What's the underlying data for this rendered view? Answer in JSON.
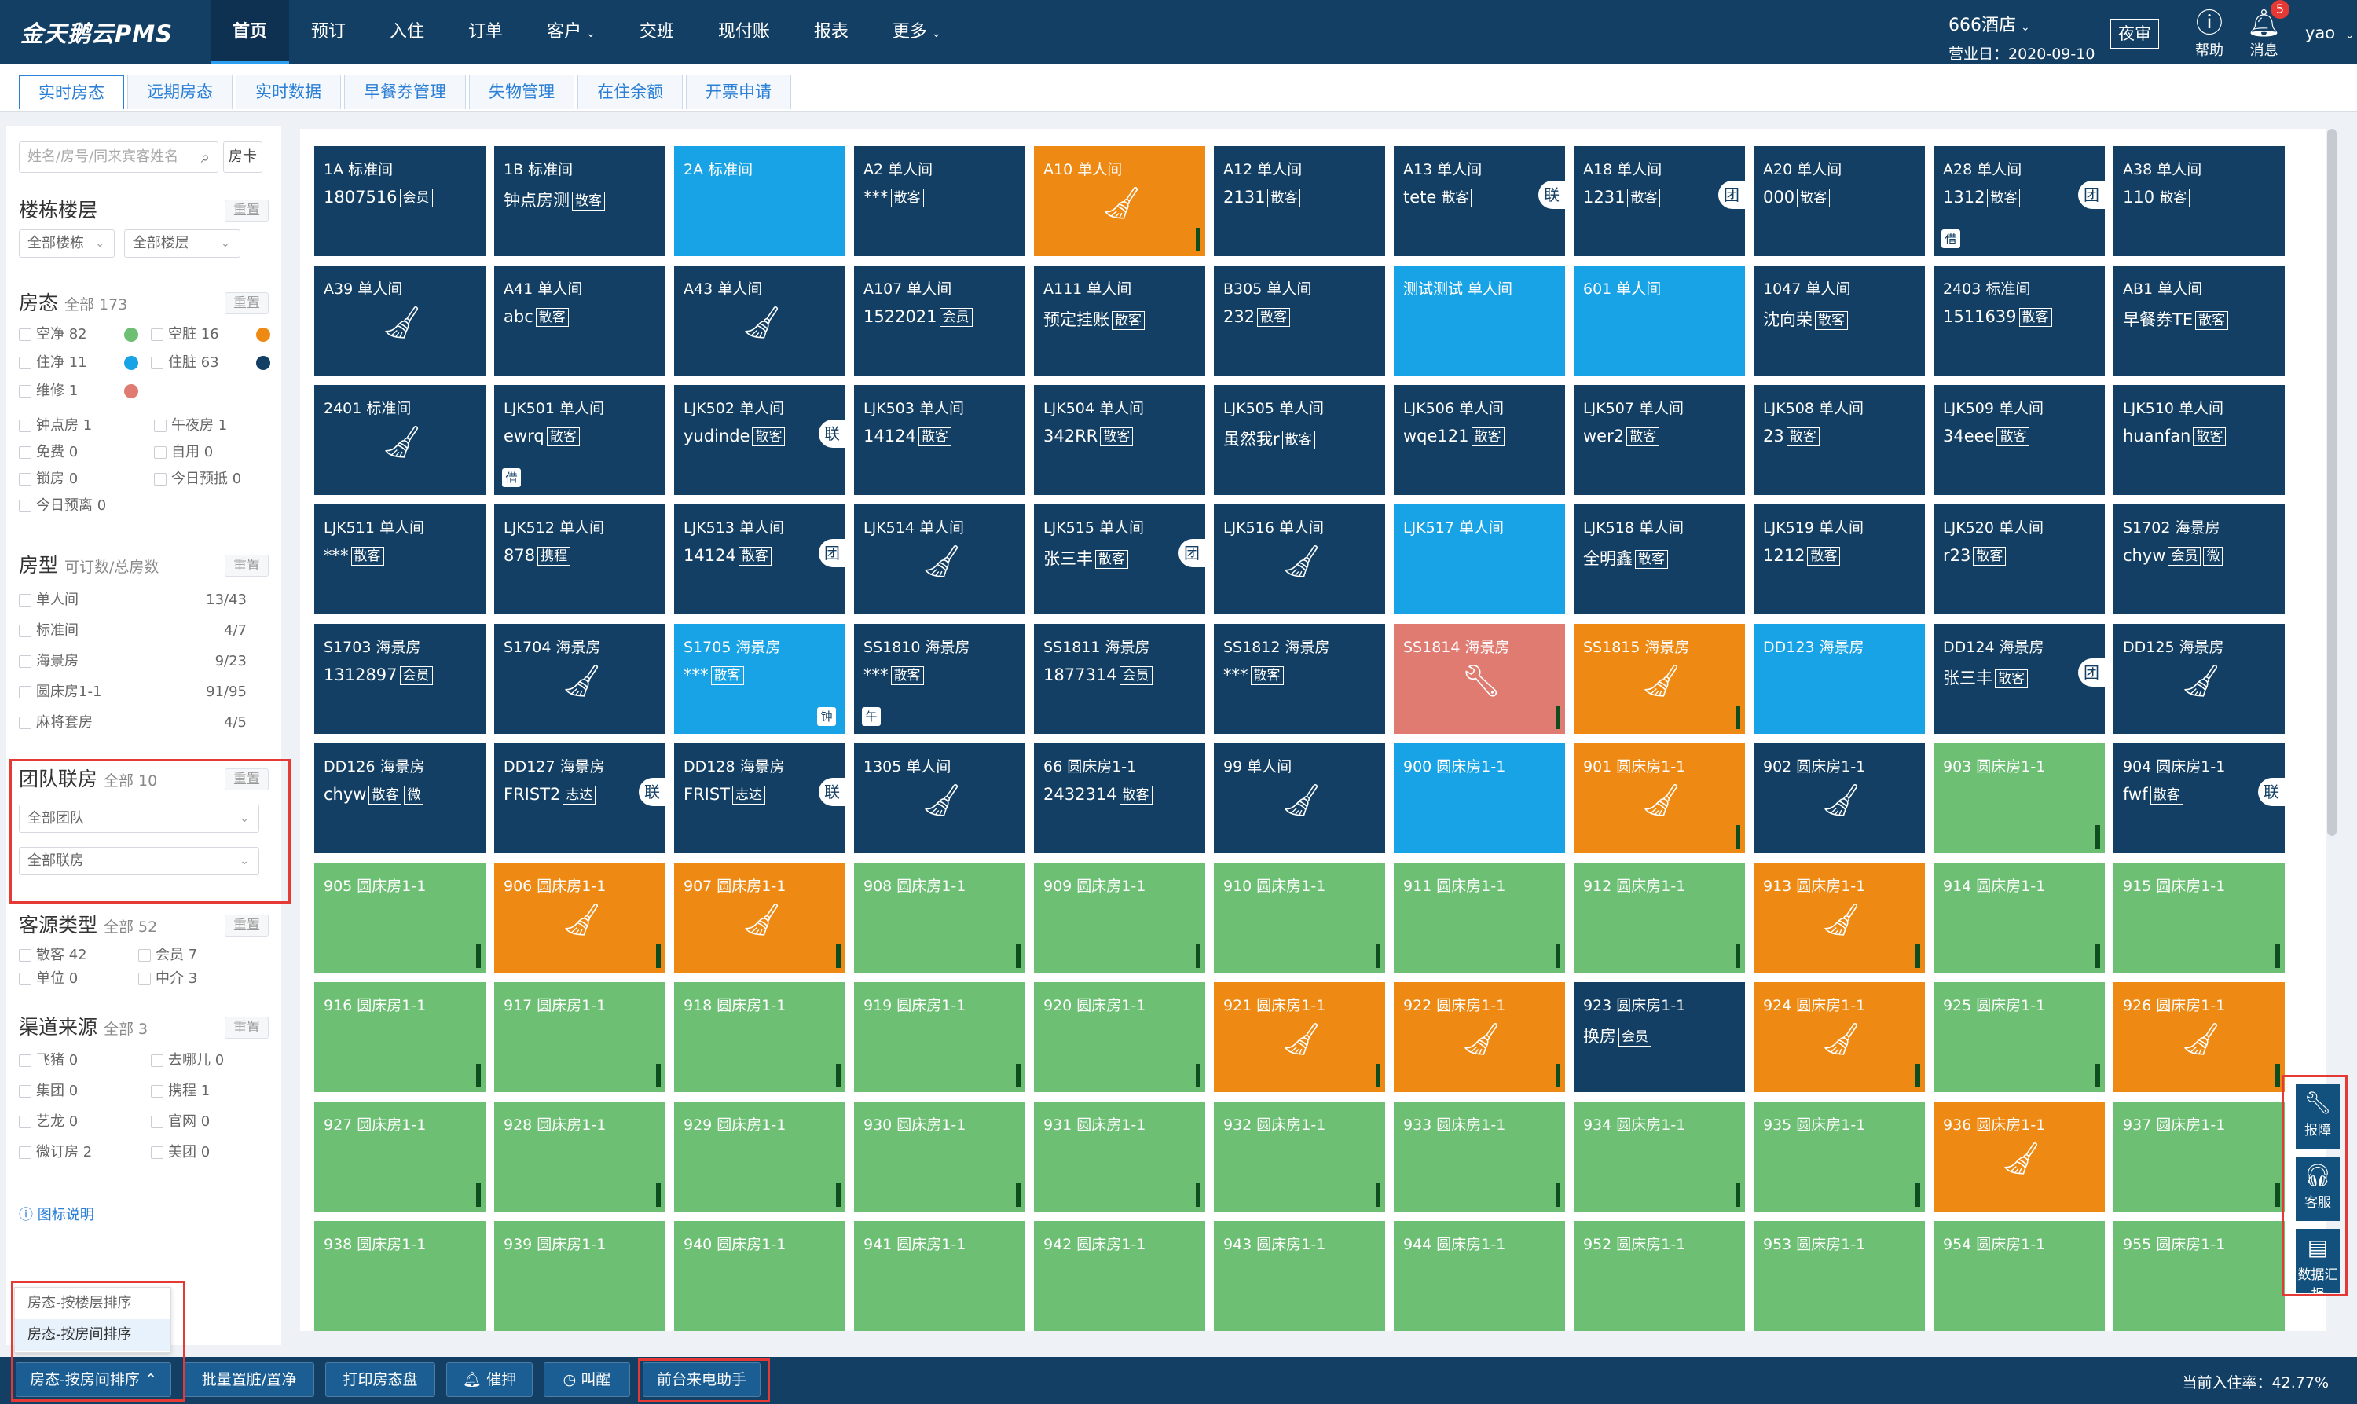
{
  "app": {
    "logo": "金天鹅云PMS"
  },
  "nav": [
    {
      "label": "首页",
      "caret": false
    },
    {
      "label": "预订",
      "caret": false
    },
    {
      "label": "入住",
      "caret": false
    },
    {
      "label": "订单",
      "caret": false
    },
    {
      "label": "客户",
      "caret": true
    },
    {
      "label": "交班",
      "caret": false
    },
    {
      "label": "现付账",
      "caret": false
    },
    {
      "label": "报表",
      "caret": false
    },
    {
      "label": "更多",
      "caret": true
    }
  ],
  "header": {
    "hotel": "666酒店",
    "business_date": "营业日：2020-09-10",
    "night_audit": "夜审",
    "help": "帮助",
    "messages": "消息",
    "msg_count": "5",
    "user": "yao"
  },
  "tabs": [
    "实时房态",
    "远期房态",
    "实时数据",
    "早餐券管理",
    "失物管理",
    "在住余额",
    "开票申请"
  ],
  "sidebar": {
    "search_placeholder": "姓名/房号/同来宾客姓名",
    "room_card": "房卡",
    "reset": "重置",
    "building": {
      "title": "楼栋楼层",
      "sel_building": "全部楼栋",
      "sel_floor": "全部楼层"
    },
    "status": {
      "title": "房态",
      "count": "全部 173",
      "items": [
        {
          "label": "空净 82",
          "color": "#6cbf73"
        },
        {
          "label": "空脏 16",
          "color": "#ee8a14"
        },
        {
          "label": "住净 11",
          "color": "#17a3e6"
        },
        {
          "label": "住脏 63",
          "color": "#123f63"
        },
        {
          "label": "维修 1",
          "color": "#e07b72"
        }
      ],
      "flags": [
        "钟点房 1",
        "午夜房 1",
        "免费 0",
        "自用 0",
        "锁房 0",
        "今日预抵 0",
        "今日预离 0"
      ]
    },
    "room_type": {
      "title": "房型",
      "subtitle": "可订数/总房数",
      "items": [
        {
          "label": "单人间",
          "value": "13/43"
        },
        {
          "label": "标准间",
          "value": "4/7"
        },
        {
          "label": "海景房",
          "value": "9/23"
        },
        {
          "label": "圆床房1-1",
          "value": "91/95"
        },
        {
          "label": "麻将套房",
          "value": "4/5"
        }
      ]
    },
    "group": {
      "title": "团队联房",
      "count": "全部 10",
      "sel_group": "全部团队",
      "sel_link": "全部联房"
    },
    "source": {
      "title": "客源类型",
      "count": "全部 52",
      "items": [
        "散客 42",
        "会员 7",
        "单位 0",
        "中介 3"
      ]
    },
    "channel": {
      "title": "渠道来源",
      "count": "全部 3",
      "items": [
        "飞猪 0",
        "去哪儿 0",
        "集团 0",
        "携程 1",
        "艺龙 0",
        "官网 0",
        "微订房 2",
        "美团 0"
      ]
    },
    "legend_link": "图标说明"
  },
  "sort_popup": [
    "房态-按楼层排序",
    "房态-按房间排序"
  ],
  "colors": {
    "clean": "#6cbf73",
    "dirty": "#ee8a14",
    "occ_clean": "#17a3e6",
    "occ_dirty": "#123f63",
    "repair": "#e07b72"
  },
  "rooms": [
    {
      "n": "1A 标准间",
      "s": "oc",
      "g": "1807516",
      "t": "会员"
    },
    {
      "n": "1B 标准间",
      "s": "oc",
      "g": "钟点房测",
      "t": "散客"
    },
    {
      "n": "2A 标准间",
      "s": "ob"
    },
    {
      "n": "A2 单人间",
      "s": "oc",
      "g": "***",
      "t": "散客"
    },
    {
      "n": "A10 单人间",
      "s": "or",
      "i": "broom",
      "b": 1
    },
    {
      "n": "A12 单人间",
      "s": "oc",
      "g": "2131",
      "t": "散客"
    },
    {
      "n": "A13 单人间",
      "s": "oc",
      "g": "tete",
      "t": "散客",
      "sd": "联"
    },
    {
      "n": "A18 单人间",
      "s": "oc",
      "g": "1231",
      "t": "散客",
      "sd": "团"
    },
    {
      "n": "A20 单人间",
      "s": "oc",
      "g": "000",
      "t": "散客"
    },
    {
      "n": "A28 单人间",
      "s": "oc",
      "g": "1312",
      "t": "散客",
      "sd": "团",
      "j": "借"
    },
    {
      "n": "A38 单人间",
      "s": "oc",
      "g": "110",
      "t": "散客"
    },
    {
      "n": "A39 单人间",
      "s": "oc",
      "i": "broom"
    },
    {
      "n": "A41 单人间",
      "s": "oc",
      "g": "abc",
      "t": "散客"
    },
    {
      "n": "A43 单人间",
      "s": "oc",
      "i": "broom"
    },
    {
      "n": "A107 单人间",
      "s": "oc",
      "g": "1522021",
      "t": "会员"
    },
    {
      "n": "A111 单人间",
      "s": "oc",
      "g": "预定挂账",
      "t": "散客"
    },
    {
      "n": "B305 单人间",
      "s": "oc",
      "g": "232",
      "t": "散客"
    },
    {
      "n": "测试测试 单人间",
      "s": "ob"
    },
    {
      "n": "601 单人间",
      "s": "ob"
    },
    {
      "n": "1047 单人间",
      "s": "oc",
      "g": "沈向荣",
      "t": "散客"
    },
    {
      "n": "2403 标准间",
      "s": "oc",
      "g": "1511639",
      "t": "散客"
    },
    {
      "n": "AB1 单人间",
      "s": "oc",
      "g": "早餐券TE",
      "t": "散客"
    },
    {
      "n": "2401 标准间",
      "s": "oc",
      "i": "broom"
    },
    {
      "n": "LJK501 单人间",
      "s": "oc",
      "g": "ewrq",
      "t": "散客",
      "j": "借"
    },
    {
      "n": "LJK502 单人间",
      "s": "oc",
      "g": "yudinde",
      "t": "散客",
      "sd": "联"
    },
    {
      "n": "LJK503 单人间",
      "s": "oc",
      "g": "14124",
      "t": "散客"
    },
    {
      "n": "LJK504 单人间",
      "s": "oc",
      "g": "342RR",
      "t": "散客"
    },
    {
      "n": "LJK505 单人间",
      "s": "oc",
      "g": "虽然我r",
      "t": "散客"
    },
    {
      "n": "LJK506 单人间",
      "s": "oc",
      "g": "wqe121",
      "t": "散客"
    },
    {
      "n": "LJK507 单人间",
      "s": "oc",
      "g": "wer2",
      "t": "散客"
    },
    {
      "n": "LJK508 单人间",
      "s": "oc",
      "g": "23",
      "t": "散客"
    },
    {
      "n": "LJK509 单人间",
      "s": "oc",
      "g": "34eee",
      "t": "散客"
    },
    {
      "n": "LJK510 单人间",
      "s": "oc",
      "g": "huanfan",
      "t": "散客"
    },
    {
      "n": "LJK511 单人间",
      "s": "oc",
      "g": "***",
      "t": "散客"
    },
    {
      "n": "LJK512 单人间",
      "s": "oc",
      "g": "878",
      "t": "携程"
    },
    {
      "n": "LJK513 单人间",
      "s": "oc",
      "g": "14124",
      "t": "散客",
      "sd": "团"
    },
    {
      "n": "LJK514 单人间",
      "s": "oc",
      "i": "broom"
    },
    {
      "n": "LJK515 单人间",
      "s": "oc",
      "g": "张三丰",
      "t": "散客",
      "sd": "团"
    },
    {
      "n": "LJK516 单人间",
      "s": "oc",
      "i": "broom"
    },
    {
      "n": "LJK517 单人间",
      "s": "ob"
    },
    {
      "n": "LJK518 单人间",
      "s": "oc",
      "g": "全明鑫",
      "t": "散客"
    },
    {
      "n": "LJK519 单人间",
      "s": "oc",
      "g": "1212",
      "t": "散客"
    },
    {
      "n": "LJK520 单人间",
      "s": "oc",
      "g": "r23",
      "t": "散客"
    },
    {
      "n": "S1702 海景房",
      "s": "oc",
      "g": "chyw",
      "t": "会员",
      "t2": "微"
    },
    {
      "n": "S1703 海景房",
      "s": "oc",
      "g": "1312897",
      "t": "会员"
    },
    {
      "n": "S1704 海景房",
      "s": "oc",
      "i": "broom"
    },
    {
      "n": "S1705 海景房",
      "s": "ob",
      "g": "***",
      "t": "散客",
      "jr": "钟"
    },
    {
      "n": "SS1810 海景房",
      "s": "oc",
      "g": "***",
      "t": "散客",
      "j": "午"
    },
    {
      "n": "SS1811 海景房",
      "s": "oc",
      "g": "1877314",
      "t": "会员"
    },
    {
      "n": "SS1812 海景房",
      "s": "oc",
      "g": "***",
      "t": "散客"
    },
    {
      "n": "SS1814 海景房",
      "s": "rp",
      "i": "wrench",
      "b": 1
    },
    {
      "n": "SS1815 海景房",
      "s": "or",
      "i": "broom",
      "b": 1
    },
    {
      "n": "DD123 海景房",
      "s": "ob"
    },
    {
      "n": "DD124 海景房",
      "s": "oc",
      "g": "张三丰",
      "t": "散客",
      "sd": "团"
    },
    {
      "n": "DD125 海景房",
      "s": "oc",
      "i": "broom"
    },
    {
      "n": "DD126 海景房",
      "s": "oc",
      "g": "chyw",
      "t": "散客",
      "t2": "微"
    },
    {
      "n": "DD127 海景房",
      "s": "oc",
      "g": "FRIST2",
      "t": "志达",
      "sd": "联"
    },
    {
      "n": "DD128 海景房",
      "s": "oc",
      "g": "FRIST",
      "t": "志达",
      "sd": "联"
    },
    {
      "n": "1305 单人间",
      "s": "oc",
      "i": "broom"
    },
    {
      "n": "66 圆床房1-1",
      "s": "oc",
      "g": "2432314",
      "t": "散客"
    },
    {
      "n": "99 单人间",
      "s": "oc",
      "i": "broom"
    },
    {
      "n": "900 圆床房1-1",
      "s": "ob"
    },
    {
      "n": "901 圆床房1-1",
      "s": "or",
      "i": "broom",
      "b": 1
    },
    {
      "n": "902 圆床房1-1",
      "s": "oc",
      "i": "broom"
    },
    {
      "n": "903 圆床房1-1",
      "s": "gr",
      "b": 1
    },
    {
      "n": "904 圆床房1-1",
      "s": "oc",
      "g": "fwf",
      "t": "散客",
      "sd": "联"
    },
    {
      "n": "905 圆床房1-1",
      "s": "gr",
      "b": 1
    },
    {
      "n": "906 圆床房1-1",
      "s": "or",
      "i": "broom",
      "b": 1
    },
    {
      "n": "907 圆床房1-1",
      "s": "or",
      "i": "broom",
      "b": 1
    },
    {
      "n": "908 圆床房1-1",
      "s": "gr",
      "b": 1
    },
    {
      "n": "909 圆床房1-1",
      "s": "gr",
      "b": 1
    },
    {
      "n": "910 圆床房1-1",
      "s": "gr",
      "b": 1
    },
    {
      "n": "911 圆床房1-1",
      "s": "gr",
      "b": 1
    },
    {
      "n": "912 圆床房1-1",
      "s": "gr",
      "b": 1
    },
    {
      "n": "913 圆床房1-1",
      "s": "or",
      "i": "broom",
      "b": 1
    },
    {
      "n": "914 圆床房1-1",
      "s": "gr",
      "b": 1
    },
    {
      "n": "915 圆床房1-1",
      "s": "gr",
      "b": 1
    },
    {
      "n": "916 圆床房1-1",
      "s": "gr",
      "b": 1
    },
    {
      "n": "917 圆床房1-1",
      "s": "gr",
      "b": 1
    },
    {
      "n": "918 圆床房1-1",
      "s": "gr",
      "b": 1
    },
    {
      "n": "919 圆床房1-1",
      "s": "gr",
      "b": 1
    },
    {
      "n": "920 圆床房1-1",
      "s": "gr",
      "b": 1
    },
    {
      "n": "921 圆床房1-1",
      "s": "or",
      "i": "broom",
      "b": 1
    },
    {
      "n": "922 圆床房1-1",
      "s": "or",
      "i": "broom",
      "b": 1
    },
    {
      "n": "923 圆床房1-1",
      "s": "oc",
      "g": "换房",
      "t": "会员"
    },
    {
      "n": "924 圆床房1-1",
      "s": "or",
      "i": "broom",
      "b": 1
    },
    {
      "n": "925 圆床房1-1",
      "s": "gr",
      "b": 1
    },
    {
      "n": "926 圆床房1-1",
      "s": "or",
      "i": "broom",
      "b": 1
    },
    {
      "n": "927 圆床房1-1",
      "s": "gr",
      "b": 1
    },
    {
      "n": "928 圆床房1-1",
      "s": "gr",
      "b": 1
    },
    {
      "n": "929 圆床房1-1",
      "s": "gr",
      "b": 1
    },
    {
      "n": "930 圆床房1-1",
      "s": "gr",
      "b": 1
    },
    {
      "n": "931 圆床房1-1",
      "s": "gr",
      "b": 1
    },
    {
      "n": "932 圆床房1-1",
      "s": "gr",
      "b": 1
    },
    {
      "n": "933 圆床房1-1",
      "s": "gr",
      "b": 1
    },
    {
      "n": "934 圆床房1-1",
      "s": "gr",
      "b": 1
    },
    {
      "n": "935 圆床房1-1",
      "s": "gr",
      "b": 1
    },
    {
      "n": "936 圆床房1-1",
      "s": "or",
      "i": "broom"
    },
    {
      "n": "937 圆床房1-1",
      "s": "gr",
      "b": 1
    },
    {
      "n": "938 圆床房1-1",
      "s": "gr"
    },
    {
      "n": "939 圆床房1-1",
      "s": "gr"
    },
    {
      "n": "940 圆床房1-1",
      "s": "gr"
    },
    {
      "n": "941 圆床房1-1",
      "s": "gr"
    },
    {
      "n": "942 圆床房1-1",
      "s": "gr"
    },
    {
      "n": "943 圆床房1-1",
      "s": "gr"
    },
    {
      "n": "944 圆床房1-1",
      "s": "gr"
    },
    {
      "n": "952 圆床房1-1",
      "s": "gr"
    },
    {
      "n": "953 圆床房1-1",
      "s": "gr"
    },
    {
      "n": "954 圆床房1-1",
      "s": "gr"
    },
    {
      "n": "955 圆床房1-1",
      "s": "gr"
    }
  ],
  "float_tools": [
    {
      "label": "报障",
      "icon": "wrench-icon"
    },
    {
      "label": "客服",
      "icon": "headset-icon"
    },
    {
      "label": "数据汇报",
      "icon": "report-icon"
    }
  ],
  "bottom": {
    "sort_btn": "房态-按房间排序",
    "batch": "批量置脏/置净",
    "print": "打印房态盘",
    "urge": "催押",
    "wake": "叫醒",
    "assistant": "前台来电助手",
    "occupancy": "当前入住率：42.77%"
  }
}
